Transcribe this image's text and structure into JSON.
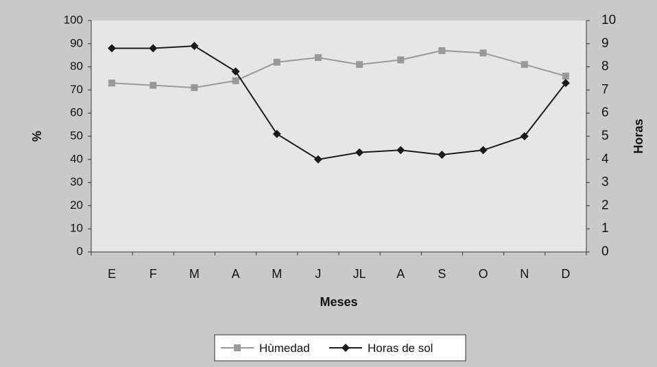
{
  "chart_data": {
    "type": "line",
    "xlabel": "Meses",
    "ylabel_left": "%",
    "ylabel_right": "Horas",
    "categories": [
      "E",
      "F",
      "M",
      "A",
      "M",
      "J",
      "JL",
      "A",
      "S",
      "O",
      "N",
      "D"
    ],
    "y_left": {
      "min": 0,
      "max": 100,
      "ticks": [
        "0",
        "10",
        "20",
        "30",
        "40",
        "50",
        "60",
        "70",
        "80",
        "90",
        "100"
      ]
    },
    "y_right": {
      "min": 0,
      "max": 10,
      "ticks": [
        "0",
        "1",
        "2",
        "3",
        "4",
        "5",
        "6",
        "7",
        "8",
        "9",
        "10"
      ]
    },
    "series": [
      {
        "name": "Hùmedad",
        "axis": "left",
        "marker": "square",
        "color": "#999999",
        "values": [
          73,
          72,
          71,
          74,
          82,
          84,
          81,
          83,
          87,
          86,
          81,
          76
        ]
      },
      {
        "name": "Horas de sol",
        "axis": "right",
        "marker": "diamond",
        "color": "#1a1a1a",
        "values": [
          8.8,
          8.8,
          8.9,
          7.8,
          5.1,
          4.0,
          4.3,
          4.4,
          4.2,
          4.4,
          5.0,
          7.3
        ]
      }
    ],
    "legend_position": "bottom",
    "grid": false,
    "colors": {
      "outer_background": "#c9c9c9",
      "plot_background": "#e6e6e6",
      "axis": "#333333"
    }
  }
}
